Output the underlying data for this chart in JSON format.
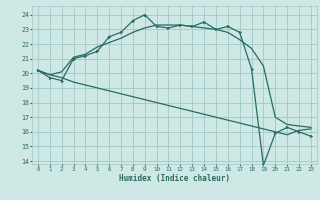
{
  "xlabel": "Humidex (Indice chaleur)",
  "bg_color": "#cde8e5",
  "grid_color": "#a0c8c4",
  "line_color": "#2a6b5f",
  "xlim": [
    -0.5,
    23.5
  ],
  "ylim": [
    13.8,
    24.6
  ],
  "yticks": [
    14,
    15,
    16,
    17,
    18,
    19,
    20,
    21,
    22,
    23,
    24
  ],
  "xticks": [
    0,
    1,
    2,
    3,
    4,
    5,
    6,
    7,
    8,
    9,
    10,
    11,
    12,
    13,
    14,
    15,
    16,
    17,
    18,
    19,
    20,
    21,
    22,
    23
  ],
  "main_x": [
    0,
    1,
    2,
    3,
    4,
    5,
    6,
    7,
    8,
    9,
    10,
    11,
    12,
    13,
    14,
    15,
    16,
    17,
    18,
    19,
    20,
    21,
    22,
    23
  ],
  "main_y": [
    20.2,
    19.7,
    19.5,
    21.0,
    21.2,
    21.5,
    22.5,
    22.8,
    23.6,
    24.0,
    23.2,
    23.1,
    23.3,
    23.2,
    23.5,
    23.0,
    23.2,
    22.8,
    20.3,
    13.7,
    15.9,
    16.3,
    16.0,
    15.7
  ],
  "upper_x": [
    0,
    1,
    2,
    3,
    4,
    5,
    6,
    7,
    8,
    9,
    10,
    11,
    12,
    13,
    14,
    15,
    16,
    17,
    18,
    19,
    20,
    21,
    22,
    23
  ],
  "upper_y": [
    20.2,
    19.9,
    20.1,
    21.1,
    21.3,
    21.8,
    22.1,
    22.4,
    22.8,
    23.1,
    23.3,
    23.3,
    23.3,
    23.2,
    23.1,
    23.0,
    22.8,
    22.3,
    21.7,
    20.5,
    17.0,
    16.5,
    16.4,
    16.3
  ],
  "lower_x": [
    0,
    1,
    2,
    3,
    4,
    5,
    6,
    7,
    8,
    9,
    10,
    11,
    12,
    13,
    14,
    15,
    16,
    17,
    18,
    19,
    20,
    21,
    22,
    23
  ],
  "lower_y": [
    20.2,
    19.9,
    19.7,
    19.4,
    19.2,
    19.0,
    18.8,
    18.6,
    18.4,
    18.2,
    18.0,
    17.8,
    17.6,
    17.4,
    17.2,
    17.0,
    16.8,
    16.6,
    16.4,
    16.2,
    16.0,
    15.8,
    16.1,
    16.2
  ]
}
